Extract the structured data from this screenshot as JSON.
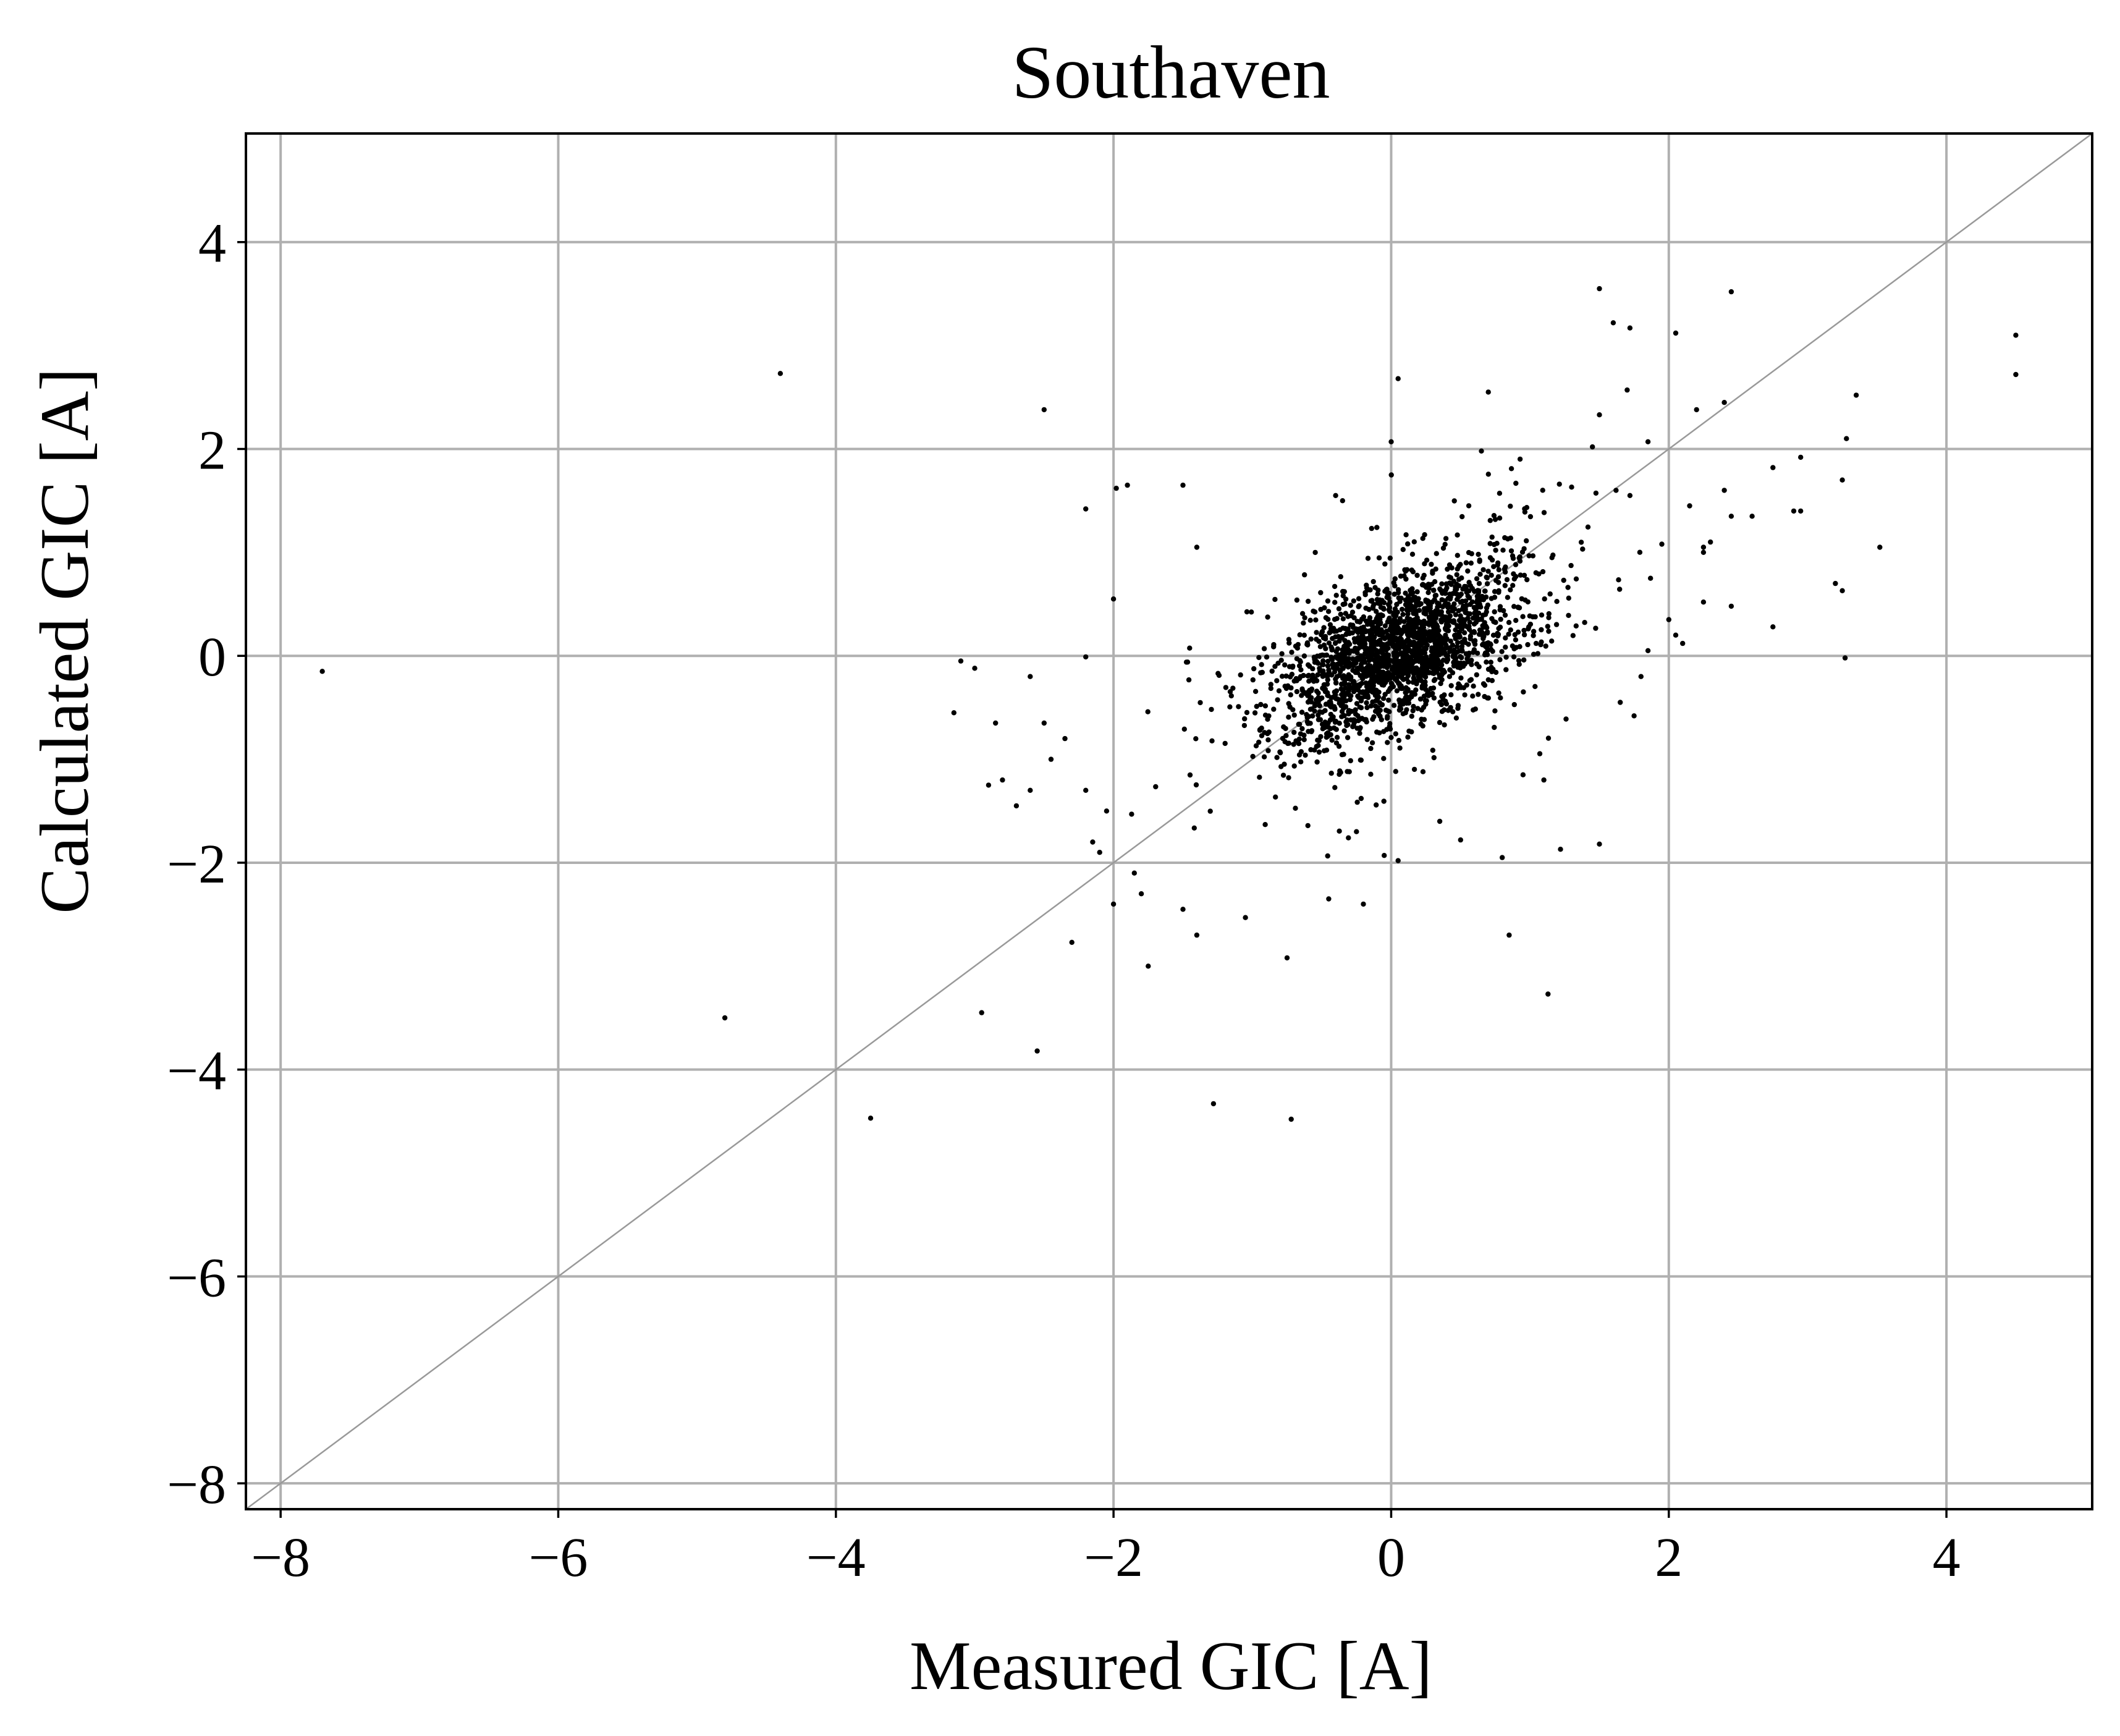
{
  "chart_data": {
    "type": "scatter",
    "title": "Southaven",
    "xlabel": "Measured GIC [A]",
    "ylabel": "Calculated GIC [A]",
    "xlim": [
      -8.25,
      5.05
    ],
    "ylim": [
      -8.25,
      5.05
    ],
    "xticks": [
      -8,
      -6,
      -4,
      -2,
      0,
      2,
      4
    ],
    "yticks": [
      -8,
      -6,
      -4,
      -2,
      0,
      2,
      4
    ],
    "xtick_labels": [
      "−8",
      "−6",
      "−4",
      "−2",
      "0",
      "2",
      "4"
    ],
    "ytick_labels": [
      "−8",
      "−6",
      "−4",
      "−2",
      "0",
      "2",
      "4"
    ],
    "grid": true,
    "reference_line": "y = x",
    "colors": {
      "points": "#000000",
      "grid": "#b0b0b0",
      "reference_line": "#999999"
    },
    "outliers": [
      [
        -7.7,
        -0.15
      ],
      [
        -4.4,
        2.73
      ],
      [
        -4.8,
        -3.5
      ],
      [
        -3.75,
        -4.47
      ],
      [
        -2.5,
        2.38
      ],
      [
        -2.55,
        -3.82
      ],
      [
        -2.95,
        -3.45
      ],
      [
        -1.28,
        -4.33
      ],
      [
        -0.72,
        -4.48
      ],
      [
        -1.75,
        -3.0
      ],
      [
        1.13,
        -3.27
      ],
      [
        0.85,
        -2.7
      ],
      [
        -2.3,
        -2.77
      ],
      [
        -1.4,
        -2.7
      ],
      [
        -0.75,
        -2.92
      ],
      [
        -1.05,
        -2.53
      ],
      [
        -0.45,
        -2.35
      ],
      [
        -0.2,
        -2.4
      ],
      [
        1.22,
        -1.87
      ],
      [
        1.5,
        -1.82
      ],
      [
        0.8,
        -1.95
      ],
      [
        0.05,
        -1.98
      ],
      [
        -0.05,
        -1.93
      ],
      [
        -2.0,
        -2.4
      ],
      [
        -1.85,
        -2.1
      ],
      [
        -1.8,
        -2.3
      ],
      [
        -1.5,
        -2.45
      ],
      [
        -2.1,
        -1.9
      ],
      [
        -2.15,
        -1.8
      ],
      [
        -3.15,
        -0.55
      ],
      [
        -3.1,
        -0.05
      ],
      [
        -3.0,
        -0.12
      ],
      [
        -2.6,
        -0.2
      ],
      [
        -2.2,
        -0.01
      ],
      [
        -2.85,
        -0.65
      ],
      [
        -2.8,
        -1.2
      ],
      [
        -2.7,
        -1.45
      ],
      [
        -2.9,
        -1.25
      ],
      [
        -2.5,
        -0.65
      ],
      [
        -2.6,
        -1.3
      ],
      [
        -2.45,
        -1.0
      ],
      [
        -2.35,
        -0.8
      ],
      [
        -2.2,
        -1.3
      ],
      [
        -2.05,
        -1.5
      ],
      [
        -2.2,
        1.42
      ],
      [
        -1.98,
        1.62
      ],
      [
        -1.9,
        1.65
      ],
      [
        -1.5,
        1.65
      ],
      [
        -2.0,
        0.55
      ],
      [
        -1.4,
        1.05
      ],
      [
        -0.4,
        1.55
      ],
      [
        -0.35,
        1.5
      ],
      [
        0.05,
        2.68
      ],
      [
        0.0,
        2.07
      ],
      [
        0.7,
        2.55
      ],
      [
        0.65,
        1.98
      ],
      [
        1.5,
        3.55
      ],
      [
        1.6,
        3.22
      ],
      [
        1.72,
        3.17
      ],
      [
        2.05,
        3.12
      ],
      [
        2.45,
        3.52
      ],
      [
        4.5,
        3.1
      ],
      [
        4.5,
        2.72
      ],
      [
        1.7,
        2.57
      ],
      [
        2.2,
        2.38
      ],
      [
        2.4,
        2.45
      ],
      [
        3.35,
        2.52
      ],
      [
        1.5,
        2.33
      ],
      [
        1.45,
        2.02
      ],
      [
        1.85,
        2.07
      ],
      [
        3.28,
        2.1
      ],
      [
        2.95,
        1.92
      ],
      [
        2.75,
        1.82
      ],
      [
        3.25,
        1.7
      ],
      [
        2.4,
        1.6
      ],
      [
        1.62,
        1.6
      ],
      [
        1.72,
        1.55
      ],
      [
        2.15,
        1.45
      ],
      [
        2.6,
        1.35
      ],
      [
        2.45,
        1.35
      ],
      [
        2.9,
        1.4
      ],
      [
        2.95,
        1.4
      ],
      [
        3.52,
        1.05
      ],
      [
        2.25,
        1.05
      ],
      [
        2.3,
        1.1
      ],
      [
        2.25,
        1.0
      ],
      [
        1.95,
        1.08
      ],
      [
        3.2,
        0.7
      ],
      [
        3.25,
        0.63
      ],
      [
        2.25,
        0.52
      ],
      [
        2.45,
        0.48
      ],
      [
        2.0,
        0.35
      ],
      [
        2.05,
        0.2
      ],
      [
        2.1,
        0.12
      ],
      [
        2.75,
        0.28
      ],
      [
        3.27,
        -0.02
      ],
      [
        1.85,
        0.05
      ],
      [
        1.65,
        -0.45
      ],
      [
        1.75,
        -0.58
      ],
      [
        1.8,
        -0.2
      ],
      [
        0.95,
        -1.15
      ],
      [
        1.1,
        -1.2
      ],
      [
        0.5,
        -1.78
      ],
      [
        0.35,
        -1.6
      ],
      [
        -0.25,
        -1.7
      ]
    ],
    "cluster": {
      "n": 2200,
      "center": [
        0.05,
        0.05
      ],
      "sd": [
        0.42,
        0.42
      ],
      "correlation": 0.55
    }
  }
}
